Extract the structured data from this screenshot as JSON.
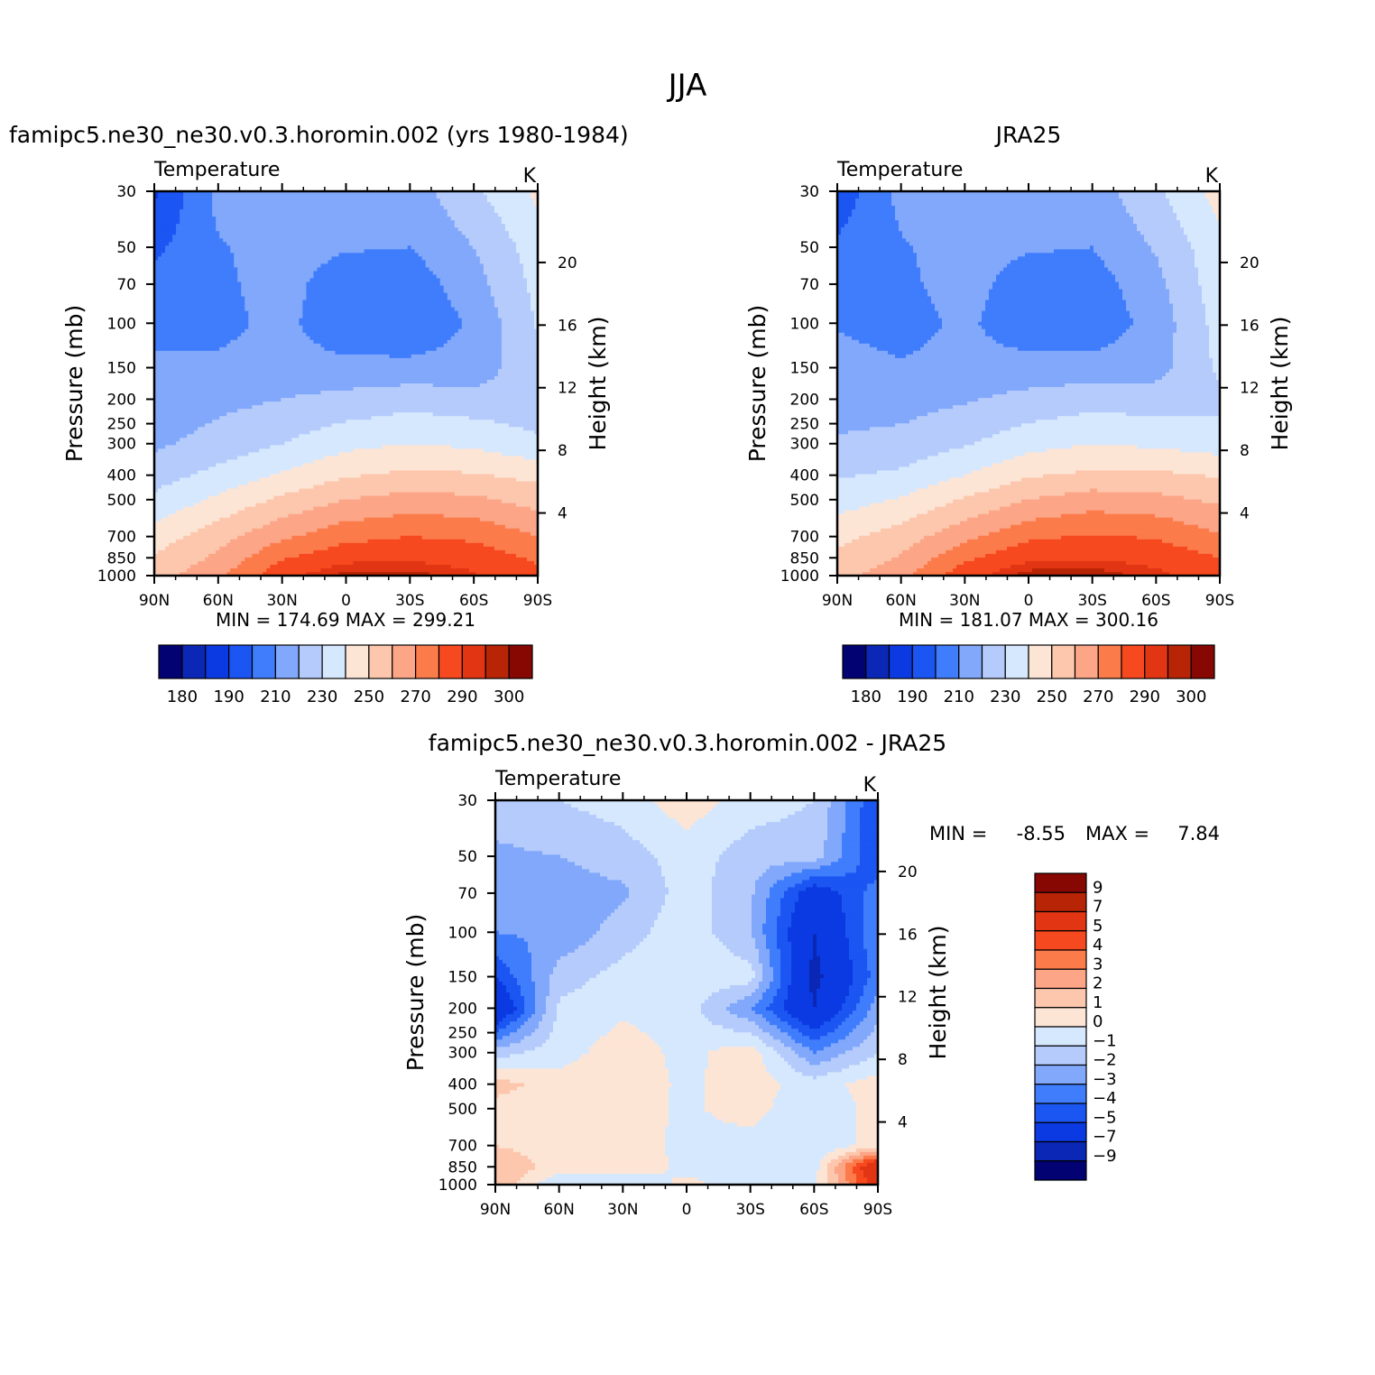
{
  "figure": {
    "title": "JJA"
  },
  "chart_data": [
    {
      "type": "heatmap",
      "id": "model",
      "title": "famipc5.ne30_ne30.v0.3.horomin.002 (yrs 1980-1984)",
      "subtitle_left": "Temperature",
      "subtitle_right": "K",
      "ylabel": "Pressure (mb)",
      "ylabel_right": "Height (km)",
      "x_ticks": [
        "90N",
        "60N",
        "30N",
        "0",
        "30S",
        "60S",
        "90S"
      ],
      "y_ticks": [
        30,
        50,
        70,
        100,
        150,
        200,
        250,
        300,
        400,
        500,
        700,
        850,
        1000
      ],
      "y_ticks_right": [
        4,
        8,
        12,
        16,
        20
      ],
      "log_y": true,
      "stats": "MIN = 174.69   MAX = 299.21",
      "levels": [
        180,
        185,
        190,
        200,
        210,
        220,
        230,
        240,
        250,
        260,
        270,
        280,
        290,
        295,
        300
      ],
      "colorbar_labels": [
        "180",
        "190",
        "210",
        "230",
        "250",
        "270",
        "290",
        "300"
      ],
      "lat_nodes": [
        -90,
        -60,
        -30,
        0,
        30,
        60,
        90
      ],
      "p_nodes": [
        30,
        50,
        70,
        100,
        150,
        200,
        300,
        400,
        500,
        700,
        850,
        1000
      ],
      "z": [
        [
          242,
          228,
          215,
          219,
          219,
          213,
          188
        ],
        [
          235,
          220,
          210,
          211,
          214,
          209,
          198
        ],
        [
          233,
          216,
          204,
          204,
          214,
          208,
          203
        ],
        [
          231,
          212,
          201,
          202,
          213,
          207,
          207
        ],
        [
          228,
          214,
          213,
          213,
          214,
          212,
          212
        ],
        [
          223,
          224,
          226,
          223,
          220,
          217,
          213
        ],
        [
          232,
          238,
          240,
          237,
          230,
          224,
          218
        ],
        [
          247,
          251,
          252,
          249,
          241,
          233,
          226
        ],
        [
          256,
          262,
          264,
          260,
          252,
          242,
          232
        ],
        [
          270,
          278,
          280,
          277,
          268,
          256,
          245
        ],
        [
          278,
          286,
          288,
          287,
          279,
          262,
          251
        ],
        [
          283,
          291,
          298,
          297,
          287,
          268,
          255
        ]
      ]
    },
    {
      "type": "heatmap",
      "id": "obs",
      "title": "JRA25",
      "subtitle_left": "Temperature",
      "subtitle_right": "K",
      "ylabel": "Pressure (mb)",
      "ylabel_right": "Height (km)",
      "x_ticks": [
        "90N",
        "60N",
        "30N",
        "0",
        "30S",
        "60S",
        "90S"
      ],
      "y_ticks": [
        30,
        50,
        70,
        100,
        150,
        200,
        250,
        300,
        400,
        500,
        700,
        850,
        1000
      ],
      "y_ticks_right": [
        4,
        8,
        12,
        16,
        20
      ],
      "log_y": true,
      "stats": "MIN = 181.07   MAX = 300.16",
      "levels": [
        180,
        185,
        190,
        200,
        210,
        220,
        230,
        240,
        250,
        260,
        270,
        280,
        290,
        295,
        300
      ],
      "colorbar_labels": [
        "180",
        "190",
        "210",
        "230",
        "250",
        "270",
        "290",
        "300"
      ],
      "lat_nodes": [
        -90,
        -60,
        -30,
        0,
        30,
        60,
        90
      ],
      "p_nodes": [
        30,
        50,
        70,
        100,
        150,
        200,
        300,
        400,
        500,
        700,
        850,
        1000
      ],
      "z": [
        [
          244,
          228,
          215,
          219,
          219,
          213,
          193
        ],
        [
          237,
          221,
          210,
          211,
          214,
          209,
          202
        ],
        [
          236,
          217,
          205,
          205,
          214,
          208,
          206
        ],
        [
          234,
          214,
          203,
          203,
          212,
          206,
          209
        ],
        [
          232,
          216,
          214,
          214,
          213,
          211,
          214
        ],
        [
          227,
          225,
          226,
          223,
          219,
          216,
          216
        ],
        [
          235,
          238,
          240,
          236,
          229,
          223,
          221
        ],
        [
          249,
          252,
          252,
          249,
          240,
          232,
          229
        ],
        [
          258,
          263,
          265,
          260,
          251,
          241,
          235
        ],
        [
          271,
          279,
          281,
          278,
          267,
          255,
          247
        ],
        [
          280,
          287,
          289,
          288,
          278,
          261,
          252
        ],
        [
          285,
          292,
          299,
          298,
          286,
          267,
          256
        ]
      ]
    },
    {
      "type": "heatmap",
      "id": "diff",
      "title": "famipc5.ne30_ne30.v0.3.horomin.002 - JRA25",
      "subtitle_left": "Temperature",
      "subtitle_right": "K",
      "ylabel": "Pressure (mb)",
      "ylabel_right": "Height (km)",
      "x_ticks": [
        "90N",
        "60N",
        "30N",
        "0",
        "30S",
        "60S",
        "90S"
      ],
      "y_ticks": [
        30,
        50,
        70,
        100,
        150,
        200,
        250,
        300,
        400,
        500,
        700,
        850,
        1000
      ],
      "y_ticks_right": [
        4,
        8,
        12,
        16,
        20
      ],
      "log_y": true,
      "stats_min_label": "MIN =",
      "stats_min": "-8.55",
      "stats_max_label": "MAX =",
      "stats_max": "7.84",
      "levels": [
        -9,
        -7,
        -5,
        -4,
        -3,
        -2,
        -1,
        0,
        1,
        2,
        3,
        4,
        5,
        7,
        9
      ],
      "colorbar_labels": [
        "9",
        "7",
        "5",
        "4",
        "3",
        "2",
        "1",
        "0",
        "−1",
        "−2",
        "−3",
        "−4",
        "−5",
        "−7",
        "−9"
      ],
      "lat_nodes": [
        -90,
        -60,
        -30,
        0,
        30,
        60,
        90
      ],
      "p_nodes": [
        30,
        50,
        70,
        100,
        150,
        200,
        300,
        400,
        500,
        700,
        850,
        1000
      ],
      "z": [
        [
          -5,
          -1,
          -0.5,
          0.6,
          -0.5,
          -1,
          -1.5
        ],
        [
          -5,
          -1.5,
          -1.5,
          -0.5,
          -1.5,
          -2,
          -2.2
        ],
        [
          -3.5,
          -6,
          -1.8,
          -0.5,
          -2.2,
          -2.5,
          -3
        ],
        [
          -3,
          -7,
          -2,
          -0.3,
          -1.5,
          -2.8,
          -3
        ],
        [
          -3.5,
          -7.5,
          -0.5,
          -0.2,
          -0.6,
          -1.5,
          -5
        ],
        [
          -2.5,
          -7,
          -3,
          -0.5,
          -0.2,
          -0.8,
          -7
        ],
        [
          -1,
          -3,
          0.6,
          -0.3,
          0.5,
          -0.4,
          -1.5
        ],
        [
          0.5,
          -0.5,
          0.5,
          -0.2,
          0.6,
          0.4,
          1.5
        ],
        [
          0.5,
          -1,
          0.5,
          -0.2,
          0.5,
          0.5,
          0.5
        ],
        [
          0.5,
          -1,
          -0.5,
          -0.3,
          0.6,
          0.4,
          1
        ],
        [
          7,
          -0.5,
          -0.5,
          -0.2,
          0.5,
          0.5,
          2
        ],
        [
          6,
          -0.4,
          -0.4,
          0.2,
          -0.6,
          -1,
          2
        ]
      ]
    }
  ],
  "palette": [
    "#020272",
    "#0a27b6",
    "#0b3ae3",
    "#1b55f2",
    "#3f7dfc",
    "#82a8fb",
    "#b4cbfc",
    "#d6e8fe",
    "#fde5d6",
    "#fdc7ad",
    "#fca587",
    "#fc7b4b",
    "#f7491f",
    "#e23513",
    "#b82406",
    "#870703"
  ]
}
